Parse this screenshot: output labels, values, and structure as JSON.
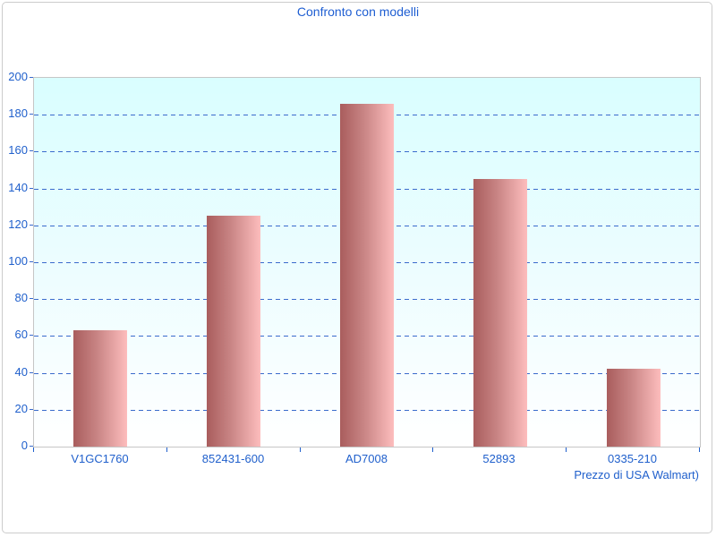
{
  "title": "Confronto con modelli",
  "x_axis_label": "Prezzo di USA Walmart)",
  "chart_data": {
    "type": "bar",
    "title": "Confronto con modelli",
    "categories": [
      "V1GC1760",
      "852431-600",
      "AD7008",
      "52893",
      "0335-210"
    ],
    "values": [
      63,
      125,
      186,
      145,
      42
    ],
    "xlabel": "Prezzo di USA Walmart)",
    "ylabel": "",
    "ylim": [
      0,
      200
    ],
    "ytick_step": 20,
    "ytick_labels": [
      "0",
      "20",
      "40",
      "60",
      "80",
      "100",
      "120",
      "140",
      "160",
      "180",
      "200"
    ],
    "grid": "horizontal-dashed",
    "legend_position": "none",
    "colors": {
      "bar_gradient_left": "#a95d5d",
      "bar_gradient_right": "#fdbdbd",
      "plot_bg_top": "#d9feff",
      "plot_bg_bottom": "#ffffff",
      "gridline": "#3a6bcc",
      "text": "#2060cc",
      "title_text": "#1e5ed2",
      "plot_border": "#c6c6c6",
      "page_border": "#cccccc"
    }
  }
}
